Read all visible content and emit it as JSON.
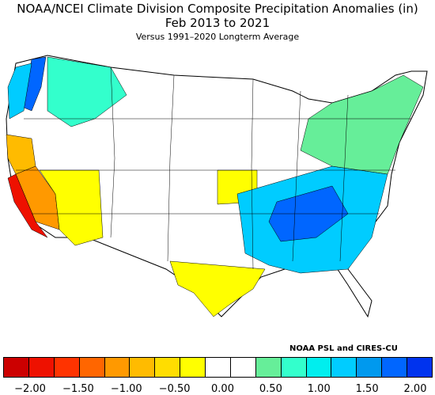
{
  "title": "NOAA/NCEI Climate Division Composite Precipitation Anomalies (in)",
  "period": "Feb 2013 to 2021",
  "subtitle": "Versus 1991–2020 Longterm Average",
  "credit": "NOAA PSL and CIRES-CU",
  "legend": {
    "colors": [
      "#cc0000",
      "#ee1100",
      "#ff3300",
      "#ff6600",
      "#ff9900",
      "#ffbb00",
      "#ffdd00",
      "#ffff00",
      "#ffffff",
      "#ffffff",
      "#66ee99",
      "#33ffcc",
      "#00eeee",
      "#00ccff",
      "#0099ee",
      "#0066ff",
      "#0033ee"
    ],
    "tick_labels": [
      "−2.00",
      "−1.50",
      "−1.00",
      "−0.50",
      "0.00",
      "0.50",
      "1.00",
      "1.50",
      "2.00"
    ]
  },
  "regions": [
    {
      "name": "pacific-northwest-coast",
      "anomaly": 1.5,
      "color": "#0066ff"
    },
    {
      "name": "washington-cascades",
      "anomaly": 0.75,
      "color": "#00ccff"
    },
    {
      "name": "northern-rockies",
      "anomaly": 0.6,
      "color": "#33ffcc"
    },
    {
      "name": "northern-california",
      "anomaly": -1.0,
      "color": "#ffbb00"
    },
    {
      "name": "central-california",
      "anomaly": -1.25,
      "color": "#ff9900"
    },
    {
      "name": "southern-california-coast",
      "anomaly": -2.0,
      "color": "#ee1100"
    },
    {
      "name": "great-basin-southwest",
      "anomaly": -0.5,
      "color": "#ffff00"
    },
    {
      "name": "missouri-iowa",
      "anomaly": -0.4,
      "color": "#ffff00"
    },
    {
      "name": "texas",
      "anomaly": -0.4,
      "color": "#ffff00"
    },
    {
      "name": "southeast",
      "anomaly": 1.0,
      "color": "#00ccff"
    },
    {
      "name": "tennessee-valley",
      "anomaly": 1.5,
      "color": "#0066ff"
    },
    {
      "name": "northeast",
      "anomaly": 0.5,
      "color": "#66ee99"
    }
  ]
}
